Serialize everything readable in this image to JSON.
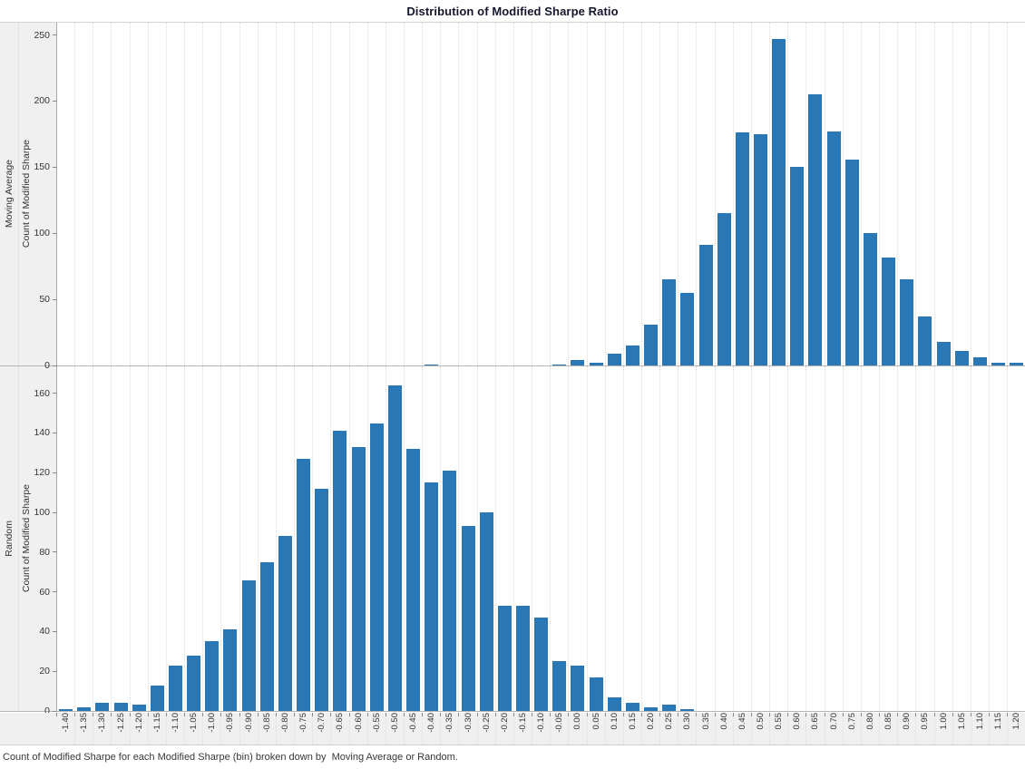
{
  "title": "Distribution of Modified Sharpe Ratio",
  "caption": "Count of Modified Sharpe for each Modified Sharpe (bin) broken down by  Moving Average or Random.",
  "colors": {
    "bar": "#2978b5",
    "axis_line": "#a8a8a8",
    "grid_dotted": "#dcdcdc",
    "band_background": "#f0f0f0",
    "title_text": "#15152e",
    "tick_text": "#333333"
  },
  "chart_data": {
    "type": "bar",
    "title": "Distribution of Modified Sharpe Ratio",
    "xlabel": "Modified Sharpe (bin)",
    "grid": "vertical-dotted",
    "legend": "none",
    "categories": [
      "-1.40",
      "-1.35",
      "-1.30",
      "-1.25",
      "-1.20",
      "-1.15",
      "-1.10",
      "-1.05",
      "-1.00",
      "-0.95",
      "-0.90",
      "-0.85",
      "-0.80",
      "-0.75",
      "-0.70",
      "-0.65",
      "-0.60",
      "-0.55",
      "-0.50",
      "-0.45",
      "-0.40",
      "-0.35",
      "-0.30",
      "-0.25",
      "-0.20",
      "-0.15",
      "-0.10",
      "-0.05",
      "0.00",
      "0.05",
      "0.10",
      "0.15",
      "0.20",
      "0.25",
      "0.30",
      "0.35",
      "0.40",
      "0.45",
      "0.50",
      "0.55",
      "0.60",
      "0.65",
      "0.70",
      "0.75",
      "0.80",
      "0.85",
      "0.90",
      "0.95",
      "1.00",
      "1.05",
      "1.10",
      "1.15",
      "1.20"
    ],
    "series": [
      {
        "name": "Moving Average",
        "ylabel": "Count of Modified Sharpe",
        "yticks": [
          0,
          50,
          100,
          150,
          200,
          250
        ],
        "ylim": [
          0,
          260
        ],
        "values": [
          0,
          0,
          0,
          0,
          0,
          0,
          0,
          0,
          0,
          0,
          0,
          0,
          0,
          0,
          0,
          0,
          0,
          0,
          0,
          0,
          1,
          0,
          0,
          0,
          0,
          0,
          0,
          1,
          4,
          2,
          9,
          15,
          31,
          65,
          55,
          91,
          115,
          176,
          175,
          247,
          150,
          205,
          177,
          156,
          100,
          82,
          65,
          37,
          18,
          11,
          6,
          2,
          2
        ]
      },
      {
        "name": "Random",
        "ylabel": "Count of Modified Sharpe",
        "yticks": [
          0,
          20,
          40,
          60,
          80,
          100,
          120,
          140,
          160
        ],
        "ylim": [
          0,
          174
        ],
        "values": [
          1,
          2,
          4,
          4,
          3,
          13,
          23,
          28,
          35,
          41,
          66,
          75,
          88,
          127,
          112,
          141,
          133,
          145,
          164,
          132,
          115,
          121,
          93,
          100,
          53,
          53,
          47,
          25,
          23,
          17,
          7,
          4,
          2,
          3,
          1,
          0,
          0,
          0,
          0,
          0,
          0,
          0,
          0,
          0,
          0,
          0,
          0,
          0,
          0,
          0,
          0,
          0,
          0
        ]
      }
    ]
  }
}
